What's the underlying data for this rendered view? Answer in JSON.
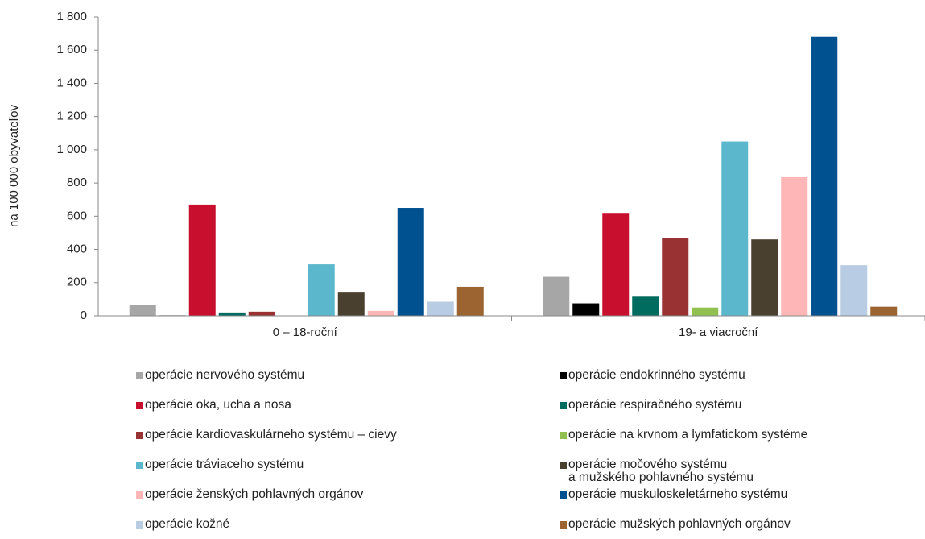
{
  "chart_data": {
    "type": "bar",
    "y_label": "na 100 000 obyvateľov",
    "categories": [
      "0 – 18-roční",
      "19- a viacroční"
    ],
    "ylim": [
      0,
      1800
    ],
    "yticks": [
      0,
      200,
      400,
      600,
      800,
      {
        "value": 1000,
        "label": "1 000"
      },
      {
        "value": 1200,
        "label": "1 200"
      },
      {
        "value": 1400,
        "label": "1 400"
      },
      {
        "value": 1600,
        "label": "1 600"
      },
      {
        "value": 1800,
        "label": "1 800"
      }
    ],
    "series": [
      {
        "name": "operácie nervového systému",
        "color": "#a6a6a6",
        "values": [
          65,
          235
        ]
      },
      {
        "name": "operácie endokrinného systému",
        "color": "#000000",
        "values": [
          3,
          75
        ]
      },
      {
        "name": "operácie oka, ucha a nosa",
        "color": "#c8102e",
        "values": [
          670,
          620
        ]
      },
      {
        "name": "operácie respiračného systému",
        "color": "#006b5f",
        "values": [
          20,
          115
        ]
      },
      {
        "name": "operácie kardiovaskulárneho systému – cievy",
        "color": "#993333",
        "values": [
          25,
          470
        ]
      },
      {
        "name": "operácie na krvnom a lymfatickom systéme",
        "color": "#92c050",
        "values": [
          2,
          50
        ]
      },
      {
        "name": "operácie tráviaceho systému",
        "color": "#5bb8cc",
        "values": [
          310,
          1050
        ]
      },
      {
        "name": "operácie močového systému\na mužského pohlavného systému",
        "color": "#4a4030",
        "values": [
          140,
          460
        ]
      },
      {
        "name": "operácie ženských pohlavných orgánov",
        "color": "#ffb6b6",
        "values": [
          30,
          835
        ]
      },
      {
        "name": "operácie muskuloskeletárneho systému",
        "color": "#00518f",
        "values": [
          650,
          1680
        ]
      },
      {
        "name": "operácie kožné",
        "color": "#b8cce4",
        "values": [
          85,
          305
        ]
      },
      {
        "name": "operácie mužských pohlavných orgánov",
        "color": "#9c6430",
        "values": [
          175,
          55
        ]
      }
    ]
  }
}
